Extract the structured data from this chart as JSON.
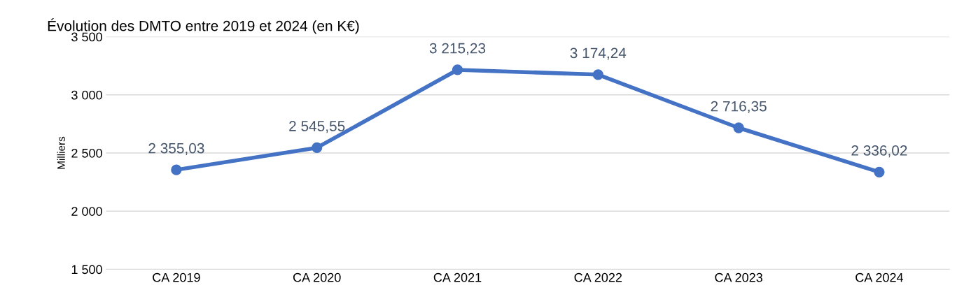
{
  "chart_data": {
    "type": "line",
    "title": "Évolution des DMTO entre 2019 et 2024 (en K€)",
    "ylabel": "Milliers",
    "categories": [
      "CA 2019",
      "CA 2020",
      "CA 2021",
      "CA 2022",
      "CA 2023",
      "CA 2024"
    ],
    "series": [
      {
        "color": "#4472c4",
        "values": [
          2355.03,
          2545.55,
          3215.23,
          3174.24,
          2716.35,
          2336.02
        ],
        "value_labels": [
          "2 355,03",
          "2 545,55",
          "3 215,23",
          "3 174,24",
          "2 716,35",
          "2 336,02"
        ]
      }
    ],
    "ylim": [
      1500,
      3500
    ],
    "yticks": [
      {
        "value": 1500,
        "label": "1 500"
      },
      {
        "value": 2000,
        "label": "2 000"
      },
      {
        "value": 2500,
        "label": "2 500"
      },
      {
        "value": 3000,
        "label": "3 000"
      },
      {
        "value": 3500,
        "label": "3 500"
      }
    ],
    "grid": "y",
    "marker": "circle",
    "line_style": "solid",
    "legend": false
  }
}
